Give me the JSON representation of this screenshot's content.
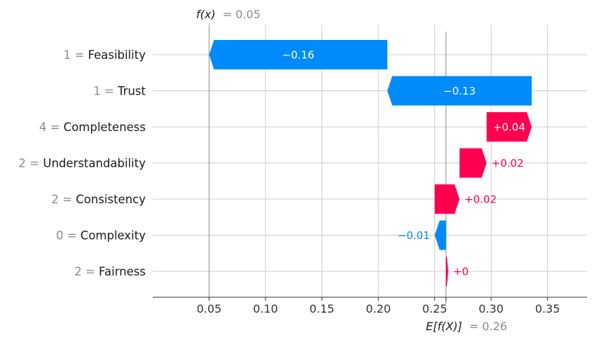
{
  "chart_data": {
    "type": "waterfall",
    "fx": {
      "label": "f(x)",
      "value_text": "= 0.05",
      "value": 0.05
    },
    "ex": {
      "label": "E[f(X)]",
      "value_text": "= 0.26",
      "value": 0.26
    },
    "features": [
      {
        "value": "1",
        "name": "Feasibility",
        "start": 0.208,
        "end": 0.05,
        "contribution": -0.16,
        "label": "−0.16",
        "label_inside": true
      },
      {
        "value": "1",
        "name": "Trust",
        "start": 0.336,
        "end": 0.208,
        "contribution": -0.13,
        "label": "−0.13",
        "label_inside": true
      },
      {
        "value": "4",
        "name": "Completeness",
        "start": 0.296,
        "end": 0.336,
        "contribution": 0.04,
        "label": "+0.04",
        "label_inside": true
      },
      {
        "value": "2",
        "name": "Understandability",
        "start": 0.272,
        "end": 0.296,
        "contribution": 0.02,
        "label": "+0.02",
        "label_inside": false
      },
      {
        "value": "2",
        "name": "Consistency",
        "start": 0.25,
        "end": 0.272,
        "contribution": 0.02,
        "label": "+0.02",
        "label_inside": false
      },
      {
        "value": "0",
        "name": "Complexity",
        "start": 0.26,
        "end": 0.25,
        "contribution": -0.01,
        "label": "−0.01",
        "label_inside": false
      },
      {
        "value": "2",
        "name": "Fairness",
        "start": 0.26,
        "end": 0.262,
        "contribution": 0.0,
        "label": "+0",
        "label_inside": false
      }
    ],
    "xaxis": {
      "ticks": [
        0.05,
        0.1,
        0.15,
        0.2,
        0.25,
        0.3,
        0.35
      ],
      "tick_labels": [
        "0.05",
        "0.10",
        "0.15",
        "0.20",
        "0.25",
        "0.30",
        "0.35"
      ],
      "xlim": [
        0.0,
        0.385
      ]
    },
    "colors": {
      "positive": "#ff0051",
      "negative": "#008bfb",
      "grid": "#cccccc",
      "axis": "#333333",
      "muted": "#8c8c8c"
    }
  }
}
